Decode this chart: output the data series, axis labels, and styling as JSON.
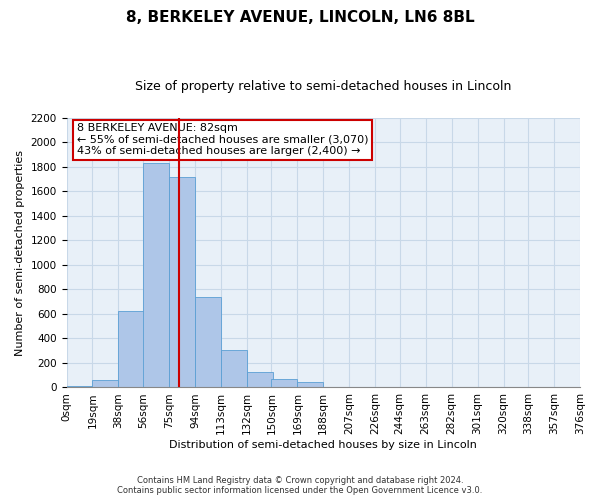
{
  "title": "8, BERKELEY AVENUE, LINCOLN, LN6 8BL",
  "subtitle": "Size of property relative to semi-detached houses in Lincoln",
  "xlabel": "Distribution of semi-detached houses by size in Lincoln",
  "ylabel": "Number of semi-detached properties",
  "bin_labels": [
    "0sqm",
    "19sqm",
    "38sqm",
    "56sqm",
    "75sqm",
    "94sqm",
    "113sqm",
    "132sqm",
    "150sqm",
    "169sqm",
    "188sqm",
    "207sqm",
    "226sqm",
    "244sqm",
    "263sqm",
    "282sqm",
    "301sqm",
    "320sqm",
    "338sqm",
    "357sqm",
    "376sqm"
  ],
  "bin_edges": [
    0,
    19,
    38,
    56,
    75,
    94,
    113,
    132,
    150,
    169,
    188,
    207,
    226,
    244,
    263,
    282,
    301,
    320,
    338,
    357,
    376
  ],
  "bar_heights": [
    15,
    60,
    620,
    1830,
    1720,
    740,
    305,
    130,
    65,
    45,
    5,
    0,
    0,
    0,
    0,
    0,
    0,
    0,
    0,
    0
  ],
  "bar_color": "#aec6e8",
  "bar_edge_color": "#5a9fd4",
  "grid_color": "#c8d8e8",
  "background_color": "#e8f0f8",
  "property_size": 82,
  "property_line_color": "#cc0000",
  "annotation_line1": "8 BERKELEY AVENUE: 82sqm",
  "annotation_line2": "← 55% of semi-detached houses are smaller (3,070)",
  "annotation_line3": "43% of semi-detached houses are larger (2,400) →",
  "annotation_box_color": "#ffffff",
  "annotation_box_edge_color": "#cc0000",
  "footer_text": "Contains HM Land Registry data © Crown copyright and database right 2024.\nContains public sector information licensed under the Open Government Licence v3.0.",
  "ylim": [
    0,
    2200
  ],
  "yticks": [
    0,
    200,
    400,
    600,
    800,
    1000,
    1200,
    1400,
    1600,
    1800,
    2000,
    2200
  ],
  "title_fontsize": 11,
  "subtitle_fontsize": 9,
  "ylabel_fontsize": 8,
  "xlabel_fontsize": 8,
  "tick_fontsize": 7.5,
  "annotation_fontsize": 8
}
